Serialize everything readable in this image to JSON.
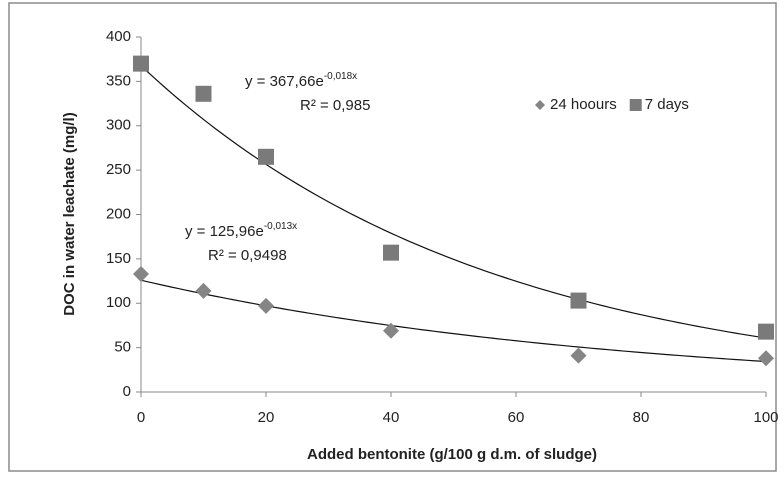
{
  "chart_data": {
    "type": "scatter",
    "xlabel": "Added bentonite (g/100 g d.m. of sludge)",
    "ylabel": "DOC in water leachate (mg/l)",
    "x": [
      0,
      10,
      20,
      40,
      70,
      100
    ],
    "series": [
      {
        "name": "24 hoours",
        "marker": "diamond",
        "color": "#858585",
        "values": [
          133,
          114,
          97,
          69,
          41,
          38
        ],
        "trendline": {
          "type": "exponential",
          "a": 125.96,
          "b": -0.013,
          "equation": "y = 125,96e",
          "exponent": "-0,013x",
          "r2": "R² = 0,9498"
        }
      },
      {
        "name": "7 days",
        "marker": "square",
        "color": "#7a7a7a",
        "values": [
          370,
          336,
          265,
          157,
          103,
          68
        ],
        "trendline": {
          "type": "exponential",
          "a": 367.66,
          "b": -0.018,
          "equation": "y = 367,66e",
          "exponent": "-0,018x",
          "r2": "R² = 0,985"
        }
      }
    ],
    "xlim": [
      0,
      100
    ],
    "xticks": [
      0,
      20,
      40,
      60,
      80,
      100
    ],
    "ylim": [
      0,
      400
    ],
    "yticks": [
      0,
      50,
      100,
      150,
      200,
      250,
      300,
      350,
      400
    ],
    "grid": false,
    "legend": "top-right"
  }
}
